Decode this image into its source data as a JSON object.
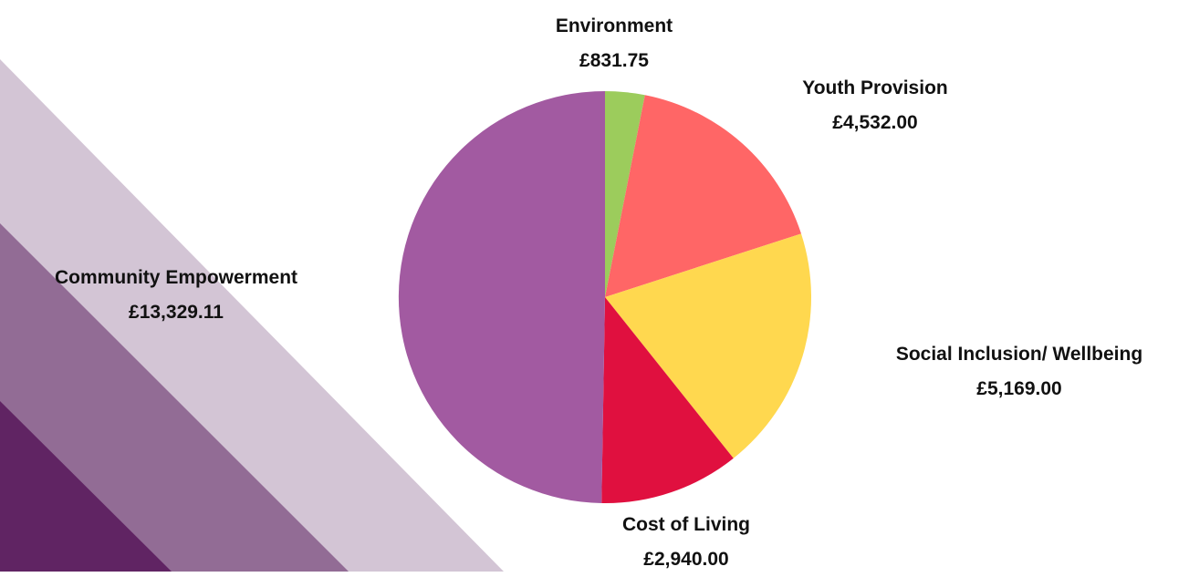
{
  "chart_data": {
    "type": "pie",
    "title": "",
    "start_angle_deg": 0,
    "direction": "clockwise",
    "slices": [
      {
        "label": "Environment",
        "value": 831.75,
        "display": "£831.75",
        "color": "#9ccc5c"
      },
      {
        "label": "Youth Provision",
        "value": 4532.0,
        "display": "£4,532.00",
        "color": "#ff6666"
      },
      {
        "label": "Social Inclusion/ Wellbeing",
        "value": 5169.0,
        "display": "£5,169.00",
        "color": "#ffd84f"
      },
      {
        "label": "Cost of Living",
        "value": 2940.0,
        "display": "£2,940.00",
        "color": "#e0103f"
      },
      {
        "label": "Community Empowerment",
        "value": 13329.11,
        "display": "£13,329.11",
        "color": "#a25aa1"
      }
    ]
  },
  "decor_colors": {
    "light": "#d3c5d5",
    "mid": "#926c95",
    "dark": "#602463"
  }
}
